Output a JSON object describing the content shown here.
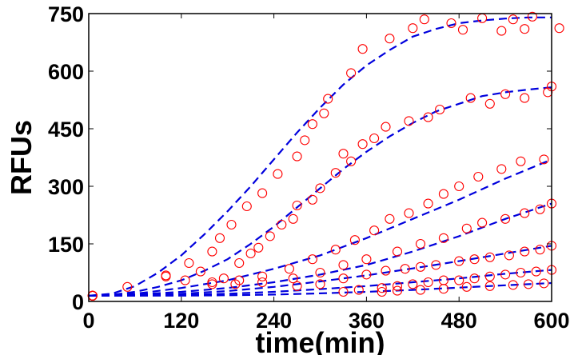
{
  "chart_data": {
    "type": "scatter",
    "title": "",
    "xlabel": "time(min)",
    "ylabel": "RFUs",
    "xlim": [
      0,
      600
    ],
    "ylim": [
      0,
      750
    ],
    "xticks": [
      0,
      120,
      240,
      360,
      480,
      600
    ],
    "yticks": [
      0,
      150,
      300,
      450,
      600,
      750
    ],
    "grid": false,
    "colors": {
      "points": "#ff0000",
      "fit": "#0000dd",
      "axis": "#000000"
    },
    "series": [
      {
        "points": [
          [
            5,
            15
          ],
          [
            50,
            38
          ],
          [
            100,
            68
          ],
          [
            130,
            100
          ],
          [
            160,
            130
          ],
          [
            170,
            165
          ],
          [
            185,
            200
          ],
          [
            205,
            248
          ],
          [
            225,
            282
          ],
          [
            245,
            332
          ],
          [
            270,
            378
          ],
          [
            280,
            420
          ],
          [
            290,
            462
          ],
          [
            305,
            490
          ],
          [
            310,
            528
          ],
          [
            340,
            595
          ],
          [
            355,
            658
          ],
          [
            390,
            685
          ],
          [
            420,
            712
          ],
          [
            435,
            735
          ],
          [
            470,
            725
          ],
          [
            485,
            708
          ],
          [
            510,
            738
          ],
          [
            535,
            705
          ],
          [
            550,
            735
          ],
          [
            565,
            710
          ],
          [
            575,
            742
          ],
          [
            610,
            712
          ]
        ],
        "fit": {
          "x": [
            0,
            30,
            60,
            90,
            120,
            150,
            180,
            210,
            240,
            270,
            300,
            330,
            360,
            390,
            420,
            450,
            480,
            510,
            540,
            570,
            600
          ],
          "y": [
            15,
            20,
            40,
            75,
            120,
            175,
            235,
            300,
            370,
            440,
            505,
            565,
            615,
            655,
            690,
            710,
            725,
            732,
            737,
            740,
            740
          ]
        }
      },
      {
        "points": [
          [
            5,
            15
          ],
          [
            100,
            65
          ],
          [
            125,
            55
          ],
          [
            145,
            78
          ],
          [
            160,
            45
          ],
          [
            175,
            60
          ],
          [
            195,
            100
          ],
          [
            210,
            125
          ],
          [
            220,
            140
          ],
          [
            235,
            170
          ],
          [
            250,
            200
          ],
          [
            265,
            215
          ],
          [
            270,
            250
          ],
          [
            290,
            265
          ],
          [
            300,
            295
          ],
          [
            320,
            335
          ],
          [
            330,
            385
          ],
          [
            340,
            365
          ],
          [
            355,
            410
          ],
          [
            370,
            425
          ],
          [
            385,
            455
          ],
          [
            415,
            470
          ],
          [
            440,
            480
          ],
          [
            455,
            500
          ],
          [
            495,
            530
          ],
          [
            520,
            515
          ],
          [
            540,
            540
          ],
          [
            565,
            530
          ],
          [
            595,
            545
          ],
          [
            600,
            560
          ]
        ],
        "fit": {
          "x": [
            0,
            30,
            60,
            90,
            120,
            150,
            180,
            210,
            240,
            270,
            300,
            330,
            360,
            390,
            420,
            450,
            480,
            510,
            540,
            570,
            600
          ],
          "y": [
            15,
            17,
            25,
            38,
            55,
            80,
            110,
            150,
            195,
            245,
            295,
            345,
            390,
            430,
            465,
            495,
            515,
            535,
            545,
            552,
            558
          ]
        }
      },
      {
        "points": [
          [
            5,
            15
          ],
          [
            160,
            50
          ],
          [
            195,
            55
          ],
          [
            225,
            65
          ],
          [
            260,
            85
          ],
          [
            290,
            110
          ],
          [
            320,
            135
          ],
          [
            345,
            160
          ],
          [
            370,
            185
          ],
          [
            390,
            215
          ],
          [
            415,
            230
          ],
          [
            440,
            255
          ],
          [
            460,
            280
          ],
          [
            480,
            300
          ],
          [
            505,
            325
          ],
          [
            535,
            345
          ],
          [
            560,
            365
          ],
          [
            590,
            370
          ]
        ],
        "fit": {
          "x": [
            0,
            60,
            120,
            180,
            240,
            300,
            360,
            420,
            480,
            540,
            600
          ],
          "y": [
            15,
            20,
            35,
            55,
            85,
            120,
            165,
            215,
            265,
            320,
            370
          ]
        }
      },
      {
        "points": [
          [
            5,
            15
          ],
          [
            190,
            45
          ],
          [
            225,
            50
          ],
          [
            265,
            60
          ],
          [
            300,
            75
          ],
          [
            330,
            95
          ],
          [
            360,
            110
          ],
          [
            400,
            130
          ],
          [
            430,
            150
          ],
          [
            460,
            165
          ],
          [
            490,
            190
          ],
          [
            510,
            205
          ],
          [
            540,
            215
          ],
          [
            565,
            230
          ],
          [
            585,
            240
          ],
          [
            600,
            255
          ]
        ],
        "fit": {
          "x": [
            0,
            60,
            120,
            180,
            240,
            300,
            360,
            420,
            480,
            540,
            600
          ],
          "y": [
            15,
            18,
            25,
            35,
            50,
            70,
            95,
            130,
            170,
            215,
            255
          ]
        }
      },
      {
        "points": [
          [
            5,
            15
          ],
          [
            270,
            40
          ],
          [
            300,
            45
          ],
          [
            330,
            60
          ],
          [
            360,
            70
          ],
          [
            385,
            80
          ],
          [
            410,
            85
          ],
          [
            430,
            90
          ],
          [
            450,
            95
          ],
          [
            480,
            105
          ],
          [
            500,
            110
          ],
          [
            520,
            115
          ],
          [
            545,
            120
          ],
          [
            565,
            130
          ],
          [
            585,
            135
          ],
          [
            600,
            145
          ]
        ],
        "fit": {
          "x": [
            0,
            60,
            120,
            180,
            240,
            300,
            360,
            420,
            480,
            540,
            600
          ],
          "y": [
            15,
            16,
            20,
            27,
            38,
            52,
            68,
            86,
            105,
            125,
            145
          ]
        }
      },
      {
        "points": [
          [
            5,
            15
          ],
          [
            330,
            25
          ],
          [
            350,
            30
          ],
          [
            380,
            35
          ],
          [
            400,
            40
          ],
          [
            420,
            45
          ],
          [
            440,
            50
          ],
          [
            460,
            55
          ],
          [
            480,
            55
          ],
          [
            500,
            60
          ],
          [
            520,
            65
          ],
          [
            540,
            70
          ],
          [
            560,
            75
          ],
          [
            580,
            78
          ],
          [
            600,
            82
          ]
        ],
        "fit": {
          "x": [
            0,
            60,
            120,
            180,
            240,
            300,
            360,
            420,
            480,
            540,
            600
          ],
          "y": [
            15,
            15,
            17,
            20,
            25,
            32,
            40,
            50,
            60,
            72,
            82
          ]
        }
      },
      {
        "points": [
          [
            5,
            15
          ],
          [
            380,
            25
          ],
          [
            400,
            28
          ],
          [
            430,
            30
          ],
          [
            460,
            33
          ],
          [
            490,
            38
          ],
          [
            520,
            40
          ],
          [
            550,
            43
          ],
          [
            570,
            45
          ],
          [
            590,
            47
          ]
        ],
        "fit": {
          "x": [
            0,
            60,
            120,
            180,
            240,
            300,
            360,
            420,
            480,
            540,
            600
          ],
          "y": [
            15,
            15,
            15,
            16,
            18,
            21,
            25,
            30,
            36,
            42,
            48
          ]
        }
      }
    ]
  }
}
